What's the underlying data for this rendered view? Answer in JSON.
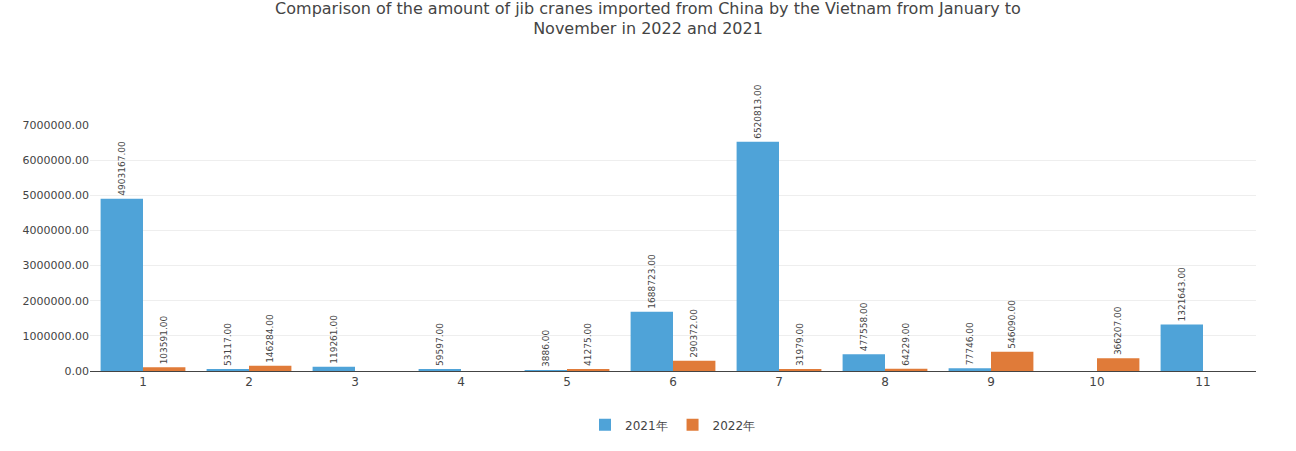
{
  "chart_data": {
    "type": "bar",
    "title": "Comparison of the amount of jib cranes imported from China by the Vietnam from January to\nNovember in 2022 and 2021",
    "categories": [
      "1",
      "2",
      "3",
      "4",
      "5",
      "6",
      "7",
      "8",
      "9",
      "10",
      "11"
    ],
    "series": [
      {
        "name": "2021年",
        "color": "#4fa3d8",
        "values": [
          4903167.0,
          53117.0,
          119261.0,
          59597.0,
          3886.0,
          1688723.0,
          6520813.0,
          477558.0,
          77746.0,
          0.0,
          1321643.0
        ],
        "value_labels": [
          "4903167.00",
          "53117.00",
          "119261.00",
          "59597.00",
          "3886.00",
          "1688723.00",
          "6520813.00",
          "477558.00",
          "77746.00",
          null,
          "1321643.00"
        ]
      },
      {
        "name": "2022年",
        "color": "#e07b39",
        "values": [
          103591.0,
          146284.0,
          0.0,
          0.0,
          41275.0,
          290372.0,
          31979.0,
          64229.0,
          546090.0,
          366207.0,
          0.0
        ],
        "value_labels": [
          "103591.00",
          "146284.00",
          null,
          null,
          "41275.00",
          "290372.00",
          "31979.00",
          "64229.00",
          "546090.00",
          "366207.00",
          null
        ]
      }
    ],
    "ylim": [
      0,
      7000000
    ],
    "yticks": [
      {
        "value": 0,
        "label": "0.00"
      },
      {
        "value": 1000000,
        "label": "1000000.00"
      },
      {
        "value": 2000000,
        "label": "2000000.00"
      },
      {
        "value": 3000000,
        "label": "3000000.00"
      },
      {
        "value": 4000000,
        "label": "4000000.00"
      },
      {
        "value": 5000000,
        "label": "5000000.00"
      },
      {
        "value": 6000000,
        "label": "6000000.00"
      },
      {
        "value": 7000000,
        "label": "7000000.00"
      }
    ],
    "grid": true,
    "legend": "bottom",
    "data_labels": true
  }
}
